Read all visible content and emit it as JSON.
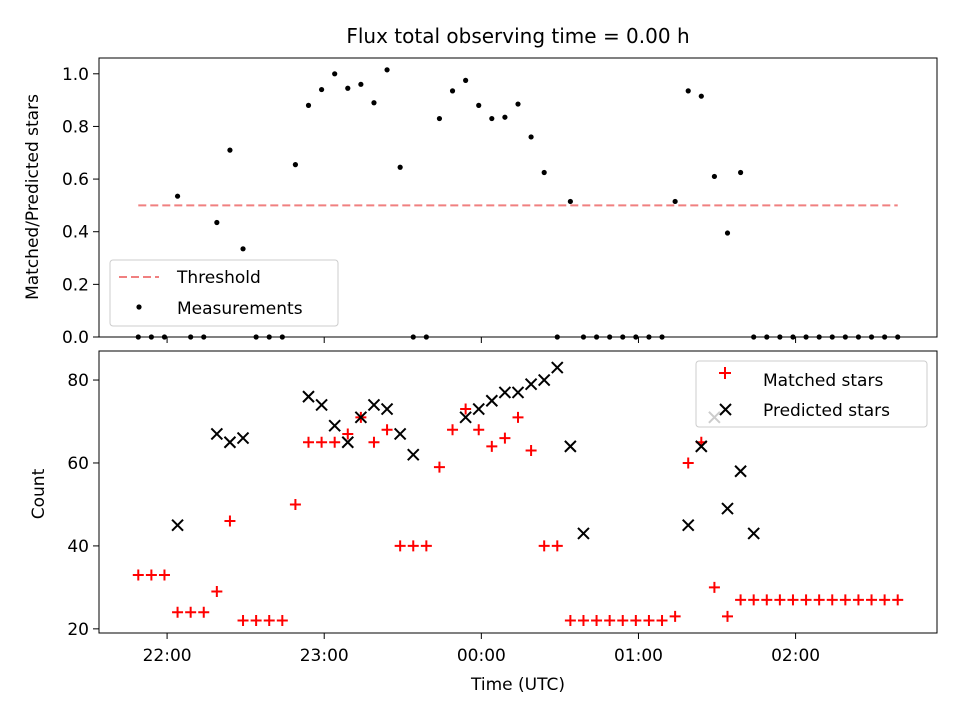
{
  "chart_data": [
    {
      "type": "scatter",
      "title": "Flux total observing time = 0.00 h",
      "ylabel": "Matched/Predicted stars",
      "xlabel": "",
      "ylim": [
        0,
        1.06
      ],
      "yticks": [
        0.0,
        0.2,
        0.4,
        0.6,
        0.8,
        1.0
      ],
      "ytick_labels": [
        "0.0",
        "0.2",
        "0.4",
        "0.6",
        "0.8",
        "1.0"
      ],
      "legend_position": "lower-left",
      "series": [
        {
          "name": "Threshold",
          "style": "dashed-line",
          "color": "#f08080",
          "x": [
            "21:49",
            "02:39"
          ],
          "y": [
            0.5,
            0.5
          ]
        },
        {
          "name": "Measurements",
          "style": "dots",
          "color": "#000000",
          "x": [
            "21:49",
            "21:54",
            "21:59",
            "22:04",
            "22:09",
            "22:14",
            "22:19",
            "22:24",
            "22:29",
            "22:34",
            "22:39",
            "22:44",
            "22:49",
            "22:54",
            "22:59",
            "23:04",
            "23:09",
            "23:14",
            "23:19",
            "23:24",
            "23:29",
            "23:34",
            "23:39",
            "23:44",
            "23:49",
            "23:54",
            "23:59",
            "00:04",
            "00:09",
            "00:14",
            "00:19",
            "00:24",
            "00:29",
            "00:34",
            "00:39",
            "00:44",
            "00:49",
            "00:54",
            "00:59",
            "01:04",
            "01:09",
            "01:14",
            "01:19",
            "01:24",
            "01:29",
            "01:34",
            "01:39",
            "01:44",
            "01:49",
            "01:54",
            "01:59",
            "02:04",
            "02:09",
            "02:14",
            "02:19",
            "02:24",
            "02:29",
            "02:34",
            "02:39"
          ],
          "y": [
            0,
            0,
            0,
            0.535,
            0,
            0,
            0.435,
            0.71,
            0.335,
            0,
            0,
            0,
            0.655,
            0.88,
            0.94,
            1.0,
            0.945,
            0.96,
            0.89,
            1.015,
            0.645,
            0,
            0,
            0.83,
            0.935,
            0.975,
            0.88,
            0.83,
            0.835,
            0.885,
            0.76,
            0.625,
            0,
            0.515,
            0,
            0,
            0,
            0,
            0,
            0,
            0,
            0.515,
            0.935,
            0.915,
            0.61,
            0.395,
            0.625,
            0,
            0,
            0,
            0,
            0,
            0,
            0,
            0,
            0,
            0,
            0,
            0
          ]
        }
      ]
    },
    {
      "type": "scatter",
      "title": "",
      "ylabel": "Count",
      "xlabel": "Time (UTC)",
      "ylim": [
        19,
        87
      ],
      "yticks": [
        20,
        40,
        60,
        80
      ],
      "ytick_labels": [
        "20",
        "40",
        "60",
        "80"
      ],
      "x_range": [
        "21:34",
        "02:54"
      ],
      "xticks": [
        "22:00",
        "23:00",
        "00:00",
        "01:00",
        "02:00"
      ],
      "legend_position": "upper-right",
      "series": [
        {
          "name": "Matched stars",
          "style": "plus",
          "color": "#ff0000",
          "x": [
            "21:49",
            "21:54",
            "21:59",
            "22:04",
            "22:09",
            "22:14",
            "22:19",
            "22:24",
            "22:29",
            "22:34",
            "22:39",
            "22:44",
            "22:49",
            "22:54",
            "22:59",
            "23:04",
            "23:09",
            "23:14",
            "23:19",
            "23:24",
            "23:29",
            "23:34",
            "23:39",
            "23:44",
            "23:49",
            "23:54",
            "23:59",
            "00:04",
            "00:09",
            "00:14",
            "00:19",
            "00:24",
            "00:29",
            "00:34",
            "00:39",
            "00:44",
            "00:49",
            "00:54",
            "00:59",
            "01:04",
            "01:09",
            "01:14",
            "01:19",
            "01:24",
            "01:29",
            "01:34",
            "01:39",
            "01:44",
            "01:49",
            "01:54",
            "01:59",
            "02:04",
            "02:09",
            "02:14",
            "02:19",
            "02:24",
            "02:29",
            "02:34",
            "02:39"
          ],
          "y": [
            33,
            33,
            33,
            24,
            24,
            24,
            29,
            46,
            22,
            22,
            22,
            22,
            50,
            65,
            65,
            65,
            67,
            71,
            65,
            68,
            40,
            40,
            40,
            59,
            68,
            73,
            68,
            64,
            66,
            71,
            63,
            40,
            40,
            22,
            22,
            22,
            22,
            22,
            22,
            22,
            22,
            23,
            60,
            65,
            30,
            23,
            27,
            27,
            27,
            27,
            27,
            27,
            27,
            27,
            27,
            27,
            27,
            27,
            27
          ]
        },
        {
          "name": "Predicted stars",
          "style": "x",
          "color": "#000000",
          "x": [
            "22:04",
            "22:19",
            "22:24",
            "22:29",
            "22:54",
            "22:59",
            "23:04",
            "23:09",
            "23:14",
            "23:19",
            "23:24",
            "23:29",
            "23:34",
            "23:54",
            "23:59",
            "00:04",
            "00:09",
            "00:14",
            "00:19",
            "00:24",
            "00:29",
            "00:34",
            "00:39",
            "01:19",
            "01:24",
            "01:29",
            "01:34",
            "01:39",
            "01:44"
          ],
          "y": [
            45,
            67,
            65,
            66,
            76,
            74,
            69,
            65,
            71,
            74,
            73,
            67,
            62,
            71,
            73,
            75,
            77,
            77,
            79,
            80,
            83,
            64,
            43,
            45,
            64,
            71,
            49,
            58,
            43
          ]
        }
      ]
    }
  ]
}
